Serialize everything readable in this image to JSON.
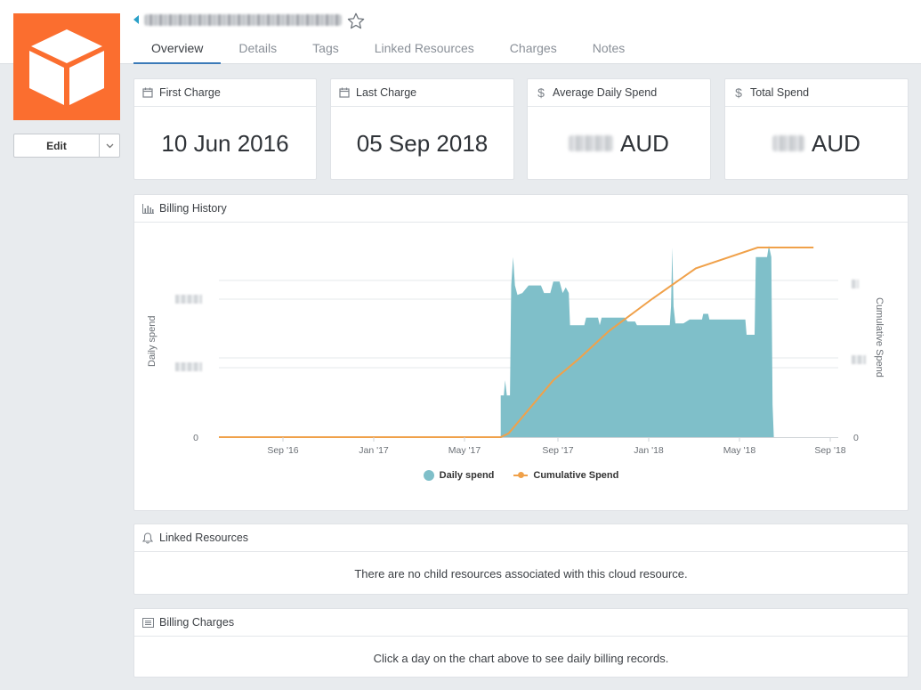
{
  "header": {
    "tabs": [
      "Overview",
      "Details",
      "Tags",
      "Linked Resources",
      "Charges",
      "Notes"
    ],
    "active_tab": "Overview"
  },
  "sidebar": {
    "edit_label": "Edit"
  },
  "stats": [
    {
      "label": "First Charge",
      "value": "10 Jun 2016",
      "icon": "calendar-icon"
    },
    {
      "label": "Last Charge",
      "value": "05 Sep 2018",
      "icon": "calendar-icon"
    },
    {
      "label": "Average Daily Spend",
      "value": "AUD",
      "icon": "dollar-icon"
    },
    {
      "label": "Total Spend",
      "value": "AUD",
      "icon": "dollar-icon"
    }
  ],
  "billing_history": {
    "title": "Billing History",
    "legend": {
      "daily": "Daily spend",
      "cumulative": "Cumulative Spend"
    }
  },
  "chart_data": {
    "type": "area",
    "x_tick_labels": [
      "Sep '16",
      "Jan '17",
      "May '17",
      "Sep '17",
      "Jan '18",
      "May '18",
      "Sep '18"
    ],
    "ylabel_left": "Daily spend",
    "ylabel_right": "Cumulative Spend",
    "y_tick_left": [
      "0"
    ],
    "y_tick_right": [
      "0"
    ],
    "colors": {
      "daily": "#7fbfc9",
      "cumulative": "#f0a14a"
    },
    "series": [
      {
        "name": "Daily spend",
        "type": "area",
        "points": [
          [
            0,
            0
          ],
          [
            0.455,
            0
          ],
          [
            0.455,
            0.22
          ],
          [
            0.46,
            0.22
          ],
          [
            0.462,
            0.3
          ],
          [
            0.465,
            0.22
          ],
          [
            0.47,
            0.22
          ],
          [
            0.472,
            0.8
          ],
          [
            0.475,
            0.95
          ],
          [
            0.478,
            0.8
          ],
          [
            0.482,
            0.75
          ],
          [
            0.49,
            0.76
          ],
          [
            0.5,
            0.8
          ],
          [
            0.52,
            0.8
          ],
          [
            0.525,
            0.76
          ],
          [
            0.535,
            0.76
          ],
          [
            0.54,
            0.82
          ],
          [
            0.55,
            0.82
          ],
          [
            0.555,
            0.76
          ],
          [
            0.56,
            0.79
          ],
          [
            0.565,
            0.76
          ],
          [
            0.567,
            0.59
          ],
          [
            0.59,
            0.59
          ],
          [
            0.593,
            0.63
          ],
          [
            0.612,
            0.63
          ],
          [
            0.615,
            0.59
          ],
          [
            0.618,
            0.63
          ],
          [
            0.655,
            0.63
          ],
          [
            0.66,
            0.61
          ],
          [
            0.672,
            0.61
          ],
          [
            0.675,
            0.59
          ],
          [
            0.7,
            0.59
          ],
          [
            0.728,
            0.59
          ],
          [
            0.73,
            0.69
          ],
          [
            0.732,
            1.0
          ],
          [
            0.734,
            0.69
          ],
          [
            0.737,
            0.6
          ],
          [
            0.75,
            0.6
          ],
          [
            0.76,
            0.62
          ],
          [
            0.77,
            0.62
          ],
          [
            0.78,
            0.62
          ],
          [
            0.782,
            0.65
          ],
          [
            0.79,
            0.65
          ],
          [
            0.792,
            0.62
          ],
          [
            0.83,
            0.62
          ],
          [
            0.85,
            0.62
          ],
          [
            0.852,
            0.54
          ],
          [
            0.865,
            0.54
          ],
          [
            0.867,
            0.95
          ],
          [
            0.885,
            0.95
          ],
          [
            0.888,
            1.01
          ],
          [
            0.892,
            0.95
          ],
          [
            0.894,
            0.17
          ],
          [
            0.896,
            0
          ],
          [
            1,
            0
          ]
        ]
      },
      {
        "name": "Cumulative Spend",
        "type": "line",
        "points": [
          [
            0,
            0
          ],
          [
            0.455,
            0
          ],
          [
            0.468,
            0.02
          ],
          [
            0.54,
            0.3
          ],
          [
            0.58,
            0.41
          ],
          [
            0.63,
            0.56
          ],
          [
            0.7,
            0.73
          ],
          [
            0.77,
            0.89
          ],
          [
            0.87,
            1.0
          ],
          [
            0.96,
            1.0
          ]
        ]
      }
    ]
  },
  "linked_resources": {
    "title": "Linked Resources",
    "message": "There are no child resources associated with this cloud resource."
  },
  "billing_charges": {
    "title": "Billing Charges",
    "message": "Click a day on the chart above to see daily billing records."
  }
}
